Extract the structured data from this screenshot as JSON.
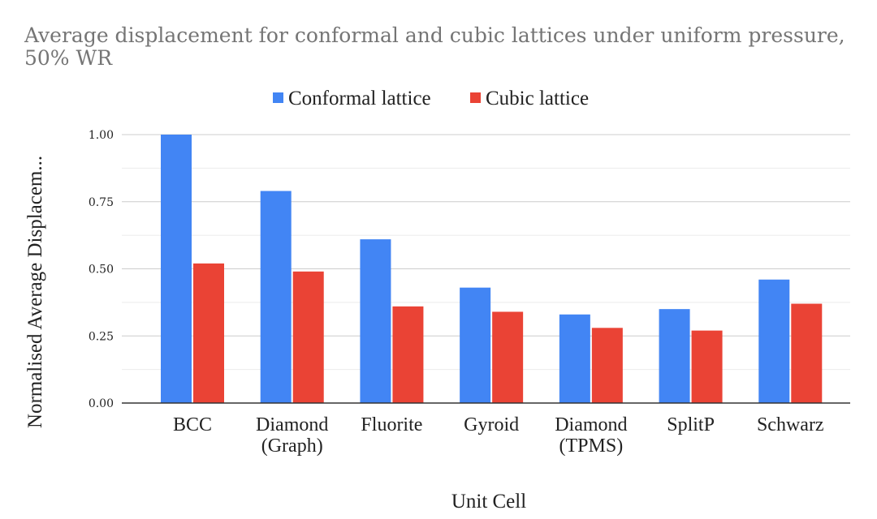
{
  "chart_data": {
    "type": "bar",
    "title": "Average displacement for conformal and cubic lattices under uniform pressure, 50% WR",
    "xlabel": "Unit Cell",
    "ylabel": "Normalised Average Displacem...",
    "categories": [
      [
        "BCC"
      ],
      [
        "Diamond",
        "(Graph)"
      ],
      [
        "Fluorite"
      ],
      [
        "Gyroid"
      ],
      [
        "Diamond",
        "(TPMS)"
      ],
      [
        "SplitP"
      ],
      [
        "Schwarz"
      ]
    ],
    "series": [
      {
        "name": "Conformal lattice",
        "color": "#4285f4",
        "values": [
          1.0,
          0.79,
          0.61,
          0.43,
          0.33,
          0.35,
          0.46
        ]
      },
      {
        "name": "Cubic lattice",
        "color": "#ea4335",
        "values": [
          0.52,
          0.49,
          0.36,
          0.34,
          0.28,
          0.27,
          0.37
        ]
      }
    ],
    "yticks": [
      "0.00",
      "0.25",
      "0.50",
      "0.75",
      "1.00"
    ],
    "ylim": [
      0,
      1.0
    ],
    "grid": true,
    "legend_position": "top"
  }
}
